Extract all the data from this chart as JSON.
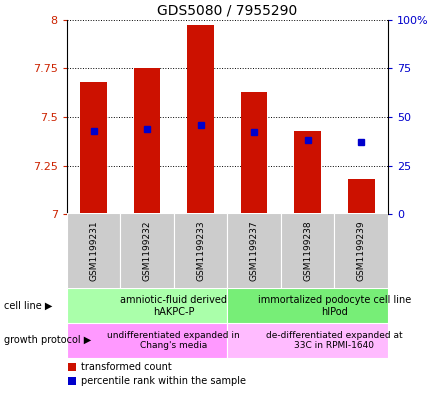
{
  "title": "GDS5080 / 7955290",
  "samples": [
    "GSM1199231",
    "GSM1199232",
    "GSM1199233",
    "GSM1199237",
    "GSM1199238",
    "GSM1199239"
  ],
  "red_bar_tops": [
    7.68,
    7.75,
    7.97,
    7.63,
    7.43,
    7.18
  ],
  "blue_pct": [
    43,
    44,
    46,
    42,
    38,
    37
  ],
  "ymin": 7.0,
  "ymax": 8.0,
  "y_ticks": [
    7.0,
    7.25,
    7.5,
    7.75,
    8.0
  ],
  "y_ticklabels": [
    "7",
    "7.25",
    "7.5",
    "7.75",
    "8"
  ],
  "y2_ticks": [
    0,
    25,
    50,
    75,
    100
  ],
  "y2_ticklabels": [
    "0",
    "25",
    "50",
    "75",
    "100%"
  ],
  "bar_color": "#cc1100",
  "bar_width": 0.5,
  "blue_color": "#0000cc",
  "blue_marker_size": 4,
  "cell_line_groups": [
    {
      "label": "amniotic-fluid derived\nhAKPC-P",
      "start": 0,
      "end": 3,
      "color": "#aaffaa"
    },
    {
      "label": "immortalized podocyte cell line\nhIPod",
      "start": 3,
      "end": 6,
      "color": "#77ee77"
    }
  ],
  "growth_protocol_groups": [
    {
      "label": "undifferentiated expanded in\nChang's media",
      "start": 0,
      "end": 3,
      "color": "#ff99ff"
    },
    {
      "label": "de-differentiated expanded at\n33C in RPMI-1640",
      "start": 3,
      "end": 6,
      "color": "#ffbbff"
    }
  ],
  "sample_label_color": "#cccccc",
  "legend_red_label": "transformed count",
  "legend_blue_label": "percentile rank within the sample",
  "cell_line_label": "cell line",
  "growth_protocol_label": "growth protocol",
  "left_axis_color": "#cc2200",
  "right_axis_color": "#0000cc",
  "grid_linestyle": "dotted",
  "title_fontsize": 10,
  "axis_label_fontsize": 8,
  "tick_fontsize": 8,
  "sample_fontsize": 6.5,
  "annotation_fontsize": 7,
  "legend_fontsize": 7
}
